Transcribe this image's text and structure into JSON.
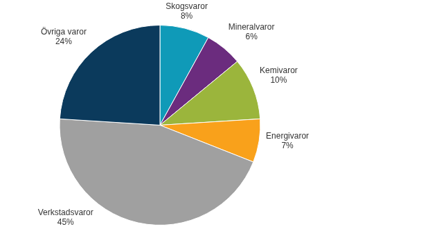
{
  "chart_data": {
    "type": "pie",
    "categories": [
      "Skogsvaror",
      "Mineralvaror",
      "Kemivaror",
      "Energivaror",
      "Verkstadsvaror",
      "Övriga varor"
    ],
    "values": [
      8,
      6,
      10,
      7,
      45,
      24
    ],
    "value_labels": [
      "8%",
      "6%",
      "10%",
      "7%",
      "45%",
      "24%"
    ],
    "colors": [
      "#0f9ab8",
      "#6b2c7e",
      "#9bb53c",
      "#f9a11b",
      "#a0a0a0",
      "#0b3a5c"
    ],
    "data_labels": true
  }
}
